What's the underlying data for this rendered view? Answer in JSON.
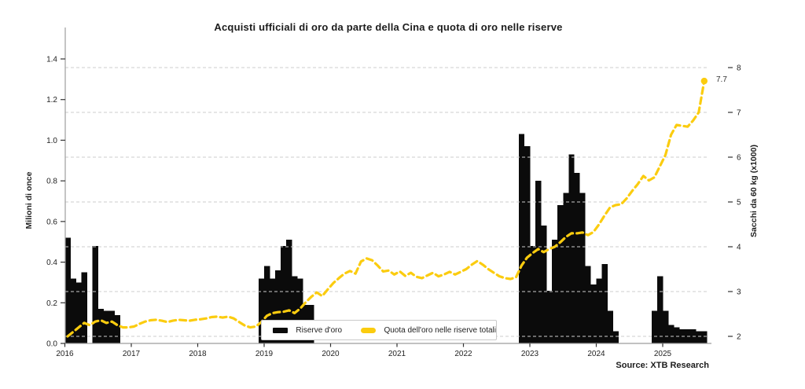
{
  "page": {
    "background": "#ffffff"
  },
  "chart_data": {
    "type": "bar+line",
    "title": "Acquisti ufficiali di oro da parte della Cina e quota di oro nelle riserve",
    "ylabel_left": "Milioni di once",
    "ylabel_right": "Sacchi da 60 kg (x1000)",
    "source": "Source: XTB Research",
    "end_annotation": "7.7",
    "x_start": "2016-01",
    "x_end": "2025-08",
    "x_tick_labels": [
      "2016",
      "2017",
      "2018",
      "2019",
      "2020",
      "2021",
      "2022",
      "2023",
      "2024",
      "2025"
    ],
    "y_left_tick_labels": [
      "0.0",
      "0.2",
      "0.4",
      "0.6",
      "0.8",
      "1.0",
      "1.2",
      "1.4"
    ],
    "y_left_tick_values": [
      0,
      0.2,
      0.4,
      0.6,
      0.8,
      1.0,
      1.2,
      1.4
    ],
    "ylim_left": [
      0,
      1.56
    ],
    "y_right_tick_labels": [
      "2",
      "3",
      "4",
      "5",
      "6",
      "7",
      "8"
    ],
    "y_right_tick_values": [
      2,
      3,
      4,
      5,
      6,
      7,
      8
    ],
    "ylim_right": [
      2,
      8.1
    ],
    "grid": "horizontal dashed lines aligned to right-axis integer ticks, drawn over bars",
    "legend_position": "inside plot, bottom center",
    "series": [
      {
        "name": "Riserve d'oro",
        "type": "bar",
        "axis": "left",
        "values": [
          0.52,
          0.32,
          0.3,
          0.35,
          0,
          0.48,
          0.17,
          0.16,
          0.16,
          0.14,
          0,
          0,
          0,
          0,
          0,
          0,
          0,
          0,
          0,
          0,
          0,
          0,
          0,
          0,
          0,
          0,
          0,
          0,
          0,
          0,
          0,
          0,
          0,
          0,
          0,
          0.32,
          0.38,
          0.32,
          0.36,
          0.48,
          0.51,
          0.33,
          0.32,
          0.19,
          0.19,
          0,
          0,
          0,
          0,
          0,
          0,
          0,
          0,
          0,
          0,
          0,
          0,
          0,
          0,
          0,
          0,
          0,
          0,
          0,
          0,
          0,
          0,
          0,
          0,
          0,
          0,
          0,
          0,
          0,
          0,
          0,
          0,
          0,
          0,
          0,
          0,
          0,
          1.03,
          0.97,
          0.48,
          0.8,
          0.58,
          0.26,
          0.51,
          0.68,
          0.74,
          0.93,
          0.84,
          0.74,
          0.38,
          0.29,
          0.32,
          0.39,
          0.16,
          0.06,
          0,
          0,
          0,
          0,
          0,
          0,
          0.16,
          0.33,
          0.16,
          0.09,
          0.08,
          0.07,
          0.07,
          0.07,
          0.06,
          0.06
        ]
      },
      {
        "name": "Quota dell'oro nelle riserve totali",
        "type": "line",
        "axis": "right",
        "values": [
          2.0,
          2.1,
          2.2,
          2.3,
          2.25,
          2.33,
          2.36,
          2.3,
          2.33,
          2.25,
          2.2,
          2.2,
          2.22,
          2.28,
          2.33,
          2.36,
          2.37,
          2.35,
          2.32,
          2.35,
          2.37,
          2.36,
          2.35,
          2.37,
          2.38,
          2.4,
          2.43,
          2.44,
          2.42,
          2.44,
          2.4,
          2.32,
          2.24,
          2.2,
          2.22,
          2.32,
          2.46,
          2.52,
          2.54,
          2.55,
          2.58,
          2.52,
          2.62,
          2.76,
          2.88,
          2.98,
          2.9,
          3.05,
          3.19,
          3.3,
          3.4,
          3.46,
          3.4,
          3.67,
          3.74,
          3.7,
          3.58,
          3.45,
          3.47,
          3.38,
          3.45,
          3.35,
          3.42,
          3.33,
          3.3,
          3.36,
          3.42,
          3.34,
          3.38,
          3.44,
          3.38,
          3.44,
          3.5,
          3.6,
          3.68,
          3.6,
          3.5,
          3.42,
          3.34,
          3.3,
          3.28,
          3.32,
          3.58,
          3.76,
          3.86,
          3.95,
          3.88,
          3.95,
          4.0,
          4.1,
          4.22,
          4.3,
          4.3,
          4.32,
          4.26,
          4.33,
          4.5,
          4.7,
          4.88,
          4.93,
          4.95,
          5.08,
          5.25,
          5.4,
          5.58,
          5.48,
          5.55,
          5.8,
          6.05,
          6.5,
          6.72,
          6.7,
          6.68,
          6.82,
          7.0,
          7.7
        ]
      }
    ]
  },
  "legend": {
    "bar_label": "Riserve d'oro",
    "line_label": "Quota dell'oro nelle riserve totali"
  },
  "colors": {
    "bar": "#0b0b0b",
    "line": "#FBCC0F",
    "grid": "#cdcdcd",
    "spine": "#9e9e9e",
    "tick_text": "#1f1f1f"
  }
}
